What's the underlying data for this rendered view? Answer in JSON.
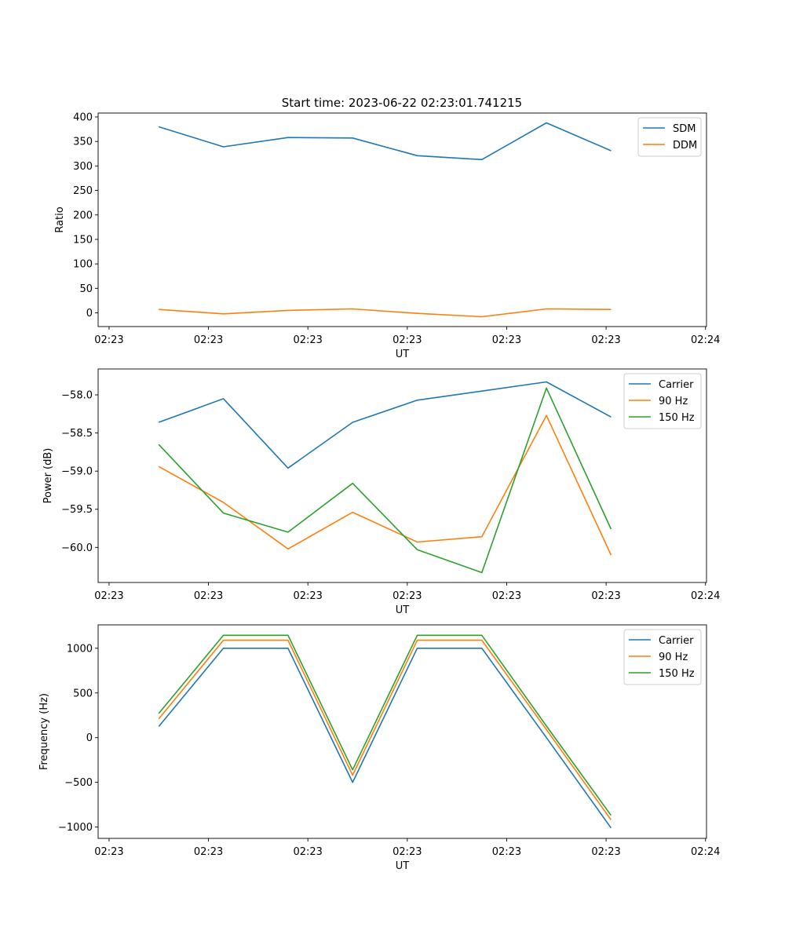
{
  "figure_title": "Start time: 2023-06-22 02:23:01.741215",
  "chart_data": [
    {
      "type": "line",
      "xlabel": "UT",
      "ylabel": "Ratio",
      "ylim": [
        -28,
        408
      ],
      "yticks": [
        0,
        50,
        100,
        150,
        200,
        250,
        300,
        350,
        400
      ],
      "ytick_labels": [
        "0",
        "50",
        "100",
        "150",
        "200",
        "250",
        "300",
        "350",
        "400"
      ],
      "xticks": [
        0,
        1,
        2,
        3,
        4,
        5,
        6
      ],
      "xtick_labels": [
        "02:23",
        "02:23",
        "02:23",
        "02:23",
        "02:23",
        "02:23",
        "02:24"
      ],
      "x": [
        0.5,
        1.15,
        1.8,
        2.45,
        3.1,
        3.75,
        4.4,
        5.05
      ],
      "legend": "top-right",
      "grid": false,
      "series": [
        {
          "name": "SDM",
          "color": "#1f77b4",
          "values": [
            380,
            339,
            358,
            357,
            321,
            313,
            388,
            331
          ]
        },
        {
          "name": "DDM",
          "color": "#ff7f0e",
          "values": [
            7,
            -2,
            5,
            8,
            -1,
            -8,
            8,
            7
          ]
        }
      ]
    },
    {
      "type": "line",
      "xlabel": "UT",
      "ylabel": "Power (dB)",
      "ylim": [
        -60.46,
        -57.66
      ],
      "yticks": [
        -60.0,
        -59.5,
        -59.0,
        -58.5,
        -58.0
      ],
      "ytick_labels": [
        "−60.0",
        "−59.5",
        "−59.0",
        "−58.5",
        "−58.0"
      ],
      "xticks": [
        0,
        1,
        2,
        3,
        4,
        5,
        6
      ],
      "xtick_labels": [
        "02:23",
        "02:23",
        "02:23",
        "02:23",
        "02:23",
        "02:23",
        "02:24"
      ],
      "x": [
        0.5,
        1.15,
        1.8,
        2.45,
        3.1,
        3.75,
        4.4,
        5.05
      ],
      "legend": "top-right",
      "grid": false,
      "series": [
        {
          "name": "Carrier",
          "color": "#1f77b4",
          "values": [
            -58.36,
            -58.05,
            -58.96,
            -58.36,
            -58.07,
            -57.95,
            -57.83,
            -58.29
          ]
        },
        {
          "name": "90 Hz",
          "color": "#ff7f0e",
          "values": [
            -58.94,
            -59.41,
            -60.02,
            -59.54,
            -59.93,
            -59.86,
            -58.27,
            -60.1
          ]
        },
        {
          "name": "150 Hz",
          "color": "#2ca02c",
          "values": [
            -58.65,
            -59.55,
            -59.8,
            -59.16,
            -60.03,
            -60.33,
            -57.91,
            -59.76
          ]
        }
      ]
    },
    {
      "type": "line",
      "xlabel": "UT",
      "ylabel": "Frequency (Hz)",
      "ylim": [
        -1127,
        1262
      ],
      "yticks": [
        -1000,
        -500,
        0,
        500,
        1000
      ],
      "ytick_labels": [
        "−1000",
        "−500",
        "0",
        "500",
        "1000"
      ],
      "xticks": [
        0,
        1,
        2,
        3,
        4,
        5,
        6
      ],
      "xtick_labels": [
        "02:23",
        "02:23",
        "02:23",
        "02:23",
        "02:23",
        "02:23",
        "02:24"
      ],
      "x": [
        0.5,
        1.15,
        1.8,
        2.45,
        3.1,
        3.75,
        4.4,
        5.05
      ],
      "legend": "top-right",
      "grid": false,
      "series": [
        {
          "name": "Carrier",
          "color": "#1f77b4",
          "values": [
            125,
            1000,
            1000,
            -500,
            1000,
            1000,
            0,
            -1010
          ]
        },
        {
          "name": "90 Hz",
          "color": "#ff7f0e",
          "values": [
            210,
            1090,
            1090,
            -420,
            1090,
            1090,
            90,
            -920
          ]
        },
        {
          "name": "150 Hz",
          "color": "#2ca02c",
          "values": [
            270,
            1145,
            1145,
            -360,
            1145,
            1145,
            130,
            -870
          ]
        }
      ]
    }
  ]
}
